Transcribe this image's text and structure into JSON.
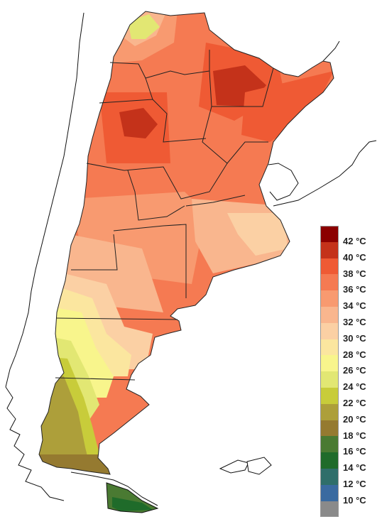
{
  "legend": {
    "items": [
      {
        "label": "42 °C",
        "color": "#8b0000"
      },
      {
        "label": "40 °C",
        "color": "#c4321a"
      },
      {
        "label": "38 °C",
        "color": "#ef5a34"
      },
      {
        "label": "36 °C",
        "color": "#f57a52"
      },
      {
        "label": "34 °C",
        "color": "#f89a70"
      },
      {
        "label": "32 °C",
        "color": "#f9b68e"
      },
      {
        "label": "30 °C",
        "color": "#fbd0a4"
      },
      {
        "label": "28 °C",
        "color": "#fbe69f"
      },
      {
        "label": "26 °C",
        "color": "#f8f58c"
      },
      {
        "label": "24 °C",
        "color": "#e2e773"
      },
      {
        "label": "22 °C",
        "color": "#c8cc3a"
      },
      {
        "label": "20 °C",
        "color": "#ad9f3a"
      },
      {
        "label": "18 °C",
        "color": "#957a30"
      },
      {
        "label": "16 °C",
        "color": "#4a7a32"
      },
      {
        "label": "14 °C",
        "color": "#1f6b2a"
      },
      {
        "label": "12 °C",
        "color": "#2f6e6a"
      },
      {
        "label": "10 °C",
        "color": "#3a6aa0"
      },
      {
        "label": "",
        "color": "#8a8a8a"
      }
    ]
  }
}
